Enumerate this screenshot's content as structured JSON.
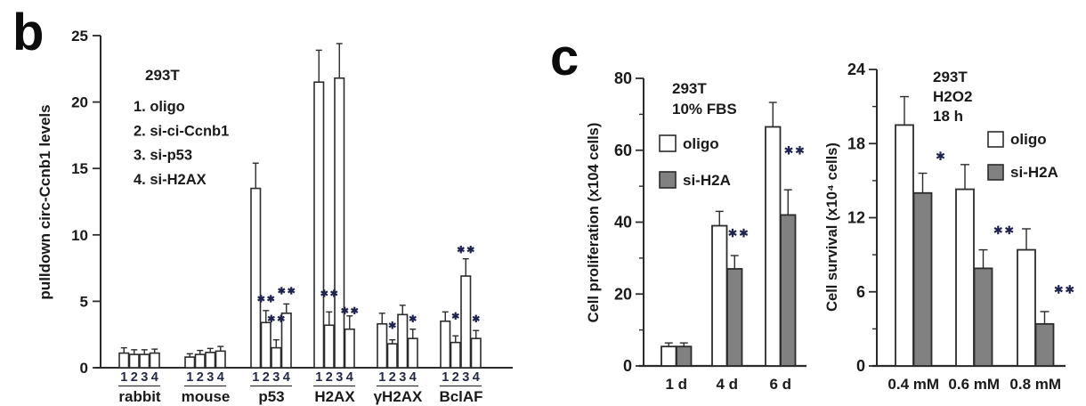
{
  "panels": {
    "b": {
      "letter": "b"
    },
    "c": {
      "letter": "c"
    }
  },
  "colors": {
    "bar_white": "#ffffff",
    "bar_gray": "#818181",
    "bar_stroke": "#2b2b2b",
    "axis": "#2b2b2b",
    "text": "#1a1a1a",
    "bar_number": "#232946",
    "sig": "#1f2350"
  },
  "chart_data": [
    {
      "panel": "b",
      "type": "bar",
      "ylabel": "pulldown circ-Ccnb1 levels",
      "ylim": [
        0,
        25
      ],
      "yticks": [
        0,
        5,
        10,
        15,
        20,
        25
      ],
      "cell_line": "293T",
      "condition_key": [
        "1. oligo",
        "2. si-ci-Ccnb1",
        "3. si-p53",
        "4. si-H2AX"
      ],
      "bar_numbers": [
        "1",
        "2",
        "3",
        "4"
      ],
      "groups": [
        {
          "label": "rabbit",
          "values": [
            1.1,
            1.0,
            1.0,
            1.1
          ],
          "errors": [
            0.4,
            0.35,
            0.35,
            0.3
          ],
          "sig": []
        },
        {
          "label": "mouse",
          "values": [
            0.8,
            1.0,
            1.15,
            1.25
          ],
          "errors": [
            0.25,
            0.3,
            0.3,
            0.35
          ],
          "sig": []
        },
        {
          "label": "p53",
          "values": [
            13.5,
            3.4,
            1.5,
            4.1
          ],
          "errors": [
            1.9,
            0.9,
            0.6,
            0.7
          ],
          "sig": [
            {
              "bar": 1,
              "text": "**",
              "y": 5.2
            },
            {
              "bar": 2,
              "text": "**",
              "y": 3.7
            },
            {
              "bar": 3,
              "text": "**",
              "y": 5.8
            }
          ]
        },
        {
          "label": "H2AX",
          "values": [
            21.5,
            3.2,
            21.8,
            2.9
          ],
          "errors": [
            2.4,
            1.0,
            2.6,
            1.0
          ],
          "sig": [
            {
              "bar": 1,
              "text": "**",
              "y": 5.6
            },
            {
              "bar": 3,
              "text": "**",
              "y": 4.3
            }
          ]
        },
        {
          "label": "γH2AX",
          "values": [
            3.3,
            1.8,
            4.0,
            2.2
          ],
          "errors": [
            0.8,
            0.3,
            0.7,
            0.7
          ],
          "sig": [
            {
              "bar": 1,
              "text": "*",
              "y": 3.2
            },
            {
              "bar": 3,
              "text": "*",
              "y": 3.7
            }
          ]
        },
        {
          "label": "BclAF",
          "values": [
            3.5,
            1.9,
            6.9,
            2.2
          ],
          "errors": [
            0.7,
            0.5,
            1.3,
            0.6
          ],
          "sig": [
            {
              "bar": 1,
              "text": "*",
              "y": 3.9
            },
            {
              "bar": 2,
              "text": "**",
              "y": 8.9
            },
            {
              "bar": 3,
              "text": "*",
              "y": 3.7
            }
          ]
        }
      ]
    },
    {
      "panel": "c",
      "type": "grouped-bar",
      "ylabel": "Cell proliferation (x104 cells)",
      "ylim": [
        0,
        80
      ],
      "yticks": [
        0,
        20,
        40,
        60,
        80
      ],
      "minor_tick_step": 10,
      "annotations": [
        "293T",
        "10% FBS"
      ],
      "legend": [
        {
          "label": "oligo",
          "fill": "white"
        },
        {
          "label": "si-H2A",
          "fill": "gray"
        }
      ],
      "categories": [
        "1 d",
        "4 d",
        "6 d"
      ],
      "series": [
        {
          "name": "oligo",
          "values": [
            5.4,
            39.0,
            66.5
          ],
          "errors": [
            1.0,
            4.0,
            6.8
          ]
        },
        {
          "name": "si-H2A",
          "values": [
            5.4,
            27.0,
            42.0
          ],
          "errors": [
            1.0,
            3.7,
            7.0
          ]
        }
      ],
      "sig": [
        null,
        {
          "text": "**",
          "y": 37,
          "dx": 4
        },
        {
          "text": "**",
          "y": 60,
          "dx": 7
        }
      ]
    },
    {
      "panel": "c",
      "type": "grouped-bar",
      "ylabel": "Cell survival (x10⁴ cells)",
      "ylim": [
        0,
        24
      ],
      "yticks": [
        0,
        6,
        12,
        18,
        24
      ],
      "minor_tick_step": 3,
      "annotations": [
        "293T",
        "H2O2",
        "18 h"
      ],
      "legend": [
        {
          "label": "oligo",
          "fill": "white"
        },
        {
          "label": "si-H2A",
          "fill": "gray"
        }
      ],
      "categories": [
        "0.4 mM",
        "0.6 mM",
        "0.8 mM"
      ],
      "series": [
        {
          "name": "oligo",
          "values": [
            19.5,
            14.3,
            9.4
          ],
          "errors": [
            2.3,
            2.0,
            1.7
          ]
        },
        {
          "name": "si-H2A",
          "values": [
            14.0,
            7.9,
            3.4
          ],
          "errors": [
            1.6,
            1.5,
            1.0
          ]
        }
      ],
      "sig": [
        {
          "text": "*",
          "y": 17,
          "dx": 20
        },
        {
          "text": "**",
          "y": 11,
          "dx": 23
        },
        {
          "text": "**",
          "y": 6.2,
          "dx": 22
        }
      ]
    }
  ]
}
